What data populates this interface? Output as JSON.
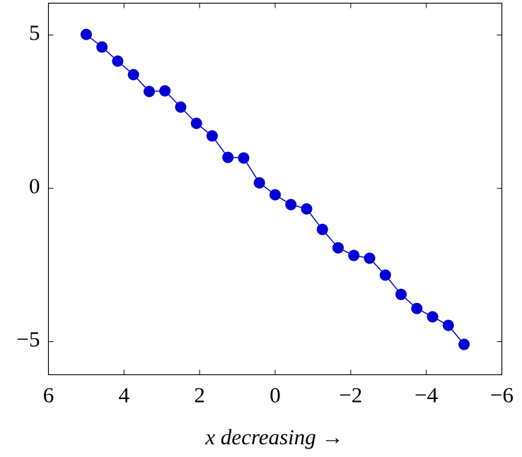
{
  "chart_data": {
    "type": "line",
    "xlabel": "x decreasing →",
    "x": [
      5,
      4.583,
      4.167,
      3.75,
      3.333,
      2.917,
      2.5,
      2.083,
      1.667,
      1.25,
      0.833,
      0.417,
      0,
      -0.417,
      -0.833,
      -1.25,
      -1.667,
      -2.083,
      -2.5,
      -2.917,
      -3.333,
      -3.75,
      -4.167,
      -4.583,
      -5
    ],
    "series": [
      {
        "color": "#0000d6",
        "values": [
          5.02,
          4.61,
          4.15,
          3.71,
          3.16,
          3.18,
          2.65,
          2.12,
          1.71,
          1.01,
          0.99,
          0.18,
          -0.21,
          -0.53,
          -0.67,
          -1.34,
          -1.94,
          -2.19,
          -2.28,
          -2.83,
          -3.46,
          -3.92,
          -4.19,
          -4.47,
          -5.09
        ]
      }
    ],
    "xlim": [
      6,
      -6
    ],
    "xticks": [
      6,
      4,
      2,
      0,
      {
        "value": -2,
        "label": "−2"
      },
      {
        "value": -4,
        "label": "−4"
      },
      {
        "value": -6,
        "label": "−6"
      }
    ],
    "ylim": [
      -6.08,
      6.04
    ],
    "yticks": [
      5,
      0,
      {
        "value": -5,
        "label": "−5"
      }
    ]
  }
}
